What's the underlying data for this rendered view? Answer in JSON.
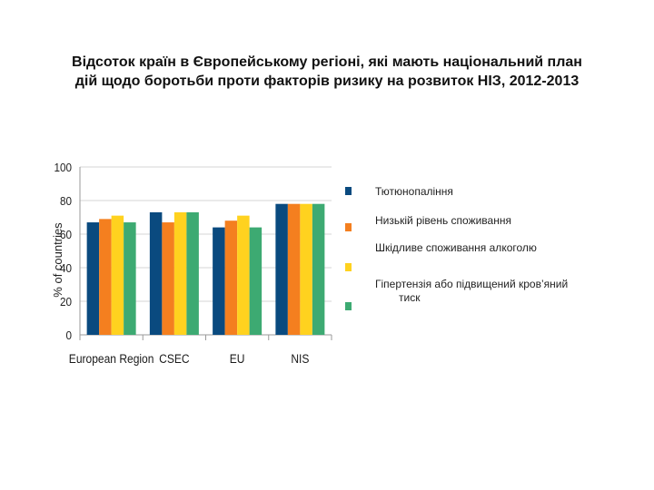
{
  "title": {
    "line1": "Відсоток країн в Європейському регіоні, які мають національний план",
    "line2": "дій щодо боротьби проти факторів ризику на розвиток НІЗ, 2012-2013"
  },
  "chart_data": {
    "type": "bar",
    "ylabel": "% of countries",
    "xlabel": "",
    "ylim": [
      0,
      100
    ],
    "yticks": [
      0,
      20,
      40,
      60,
      80,
      100
    ],
    "categories": [
      "European Region",
      "CSEC",
      "EU",
      "NIS"
    ],
    "series": [
      {
        "name": "Тютюнопаління",
        "color": "#0a4a7f",
        "values": [
          67,
          73,
          64,
          78
        ]
      },
      {
        "name": "Низькій рівень споживання",
        "color": "#f47f1f",
        "values": [
          69,
          67,
          68,
          78
        ]
      },
      {
        "name": "Шкідливе споживання алкоголю",
        "color": "#ffd21f",
        "values": [
          71,
          73,
          71,
          78
        ]
      },
      {
        "name": "Гіпертензія або підвищений кров’яний тиск",
        "name_line1": "Гіпертензія або підвищений кров’яний",
        "name_line2": "тиск",
        "color": "#3daa72",
        "values": [
          67,
          73,
          64,
          78
        ]
      }
    ],
    "grid": true,
    "legend_position": "right"
  }
}
